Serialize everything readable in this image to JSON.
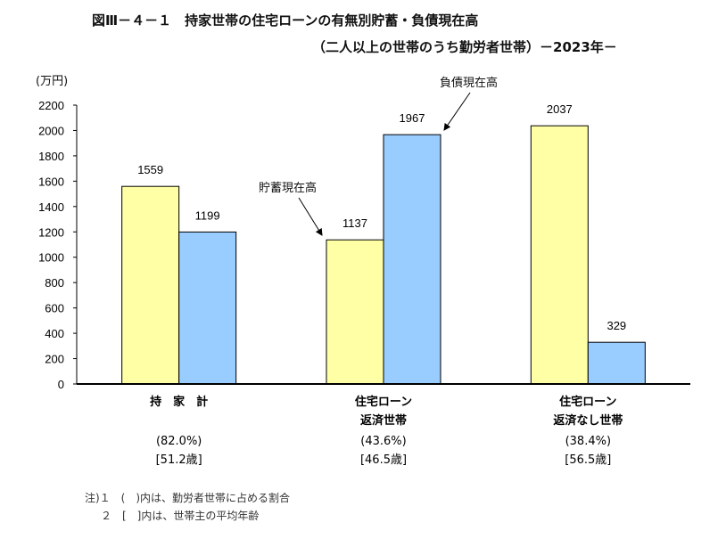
{
  "chart_data": {
    "type": "bar",
    "title": "図Ⅲ－４－１　持家世帯の住宅ローンの有無別貯蓄・負債現在高",
    "subtitle": "（二人以上の世帯のうち勤労者世帯）－2023年－",
    "ylabel": "(万円)",
    "ylim": [
      0,
      2200
    ],
    "yticks": [
      "0",
      "200",
      "400",
      "600",
      "800",
      "1000",
      "1200",
      "1400",
      "1600",
      "1800",
      "2000",
      "2200"
    ],
    "categories": [
      {
        "line1": "持　家　計",
        "line2": "",
        "share": "(82.0%)",
        "age": "[51.2歳]"
      },
      {
        "line1": "住宅ローン",
        "line2": "返済世帯",
        "share": "(43.6%)",
        "age": "[46.5歳]"
      },
      {
        "line1": "住宅ローン",
        "line2": "返済なし世帯",
        "share": "(38.4%)",
        "age": "[56.5歳]"
      }
    ],
    "series": [
      {
        "name": "貯蓄現在高",
        "color": "#ffffa6",
        "values": [
          1559,
          1137,
          2037
        ],
        "labels": [
          "1559",
          "1137",
          "2037"
        ]
      },
      {
        "name": "負債現在高",
        "color": "#99ccff",
        "values": [
          1199,
          1967,
          329
        ],
        "labels": [
          "1199",
          "1967",
          "329"
        ]
      }
    ],
    "annotations": [
      "貯蓄現在高",
      "負債現在高"
    ],
    "notes": [
      "注)１　(　)内は、勤労者世帯に占める割合",
      "２　[　]内は、世帯主の平均年齢"
    ]
  }
}
